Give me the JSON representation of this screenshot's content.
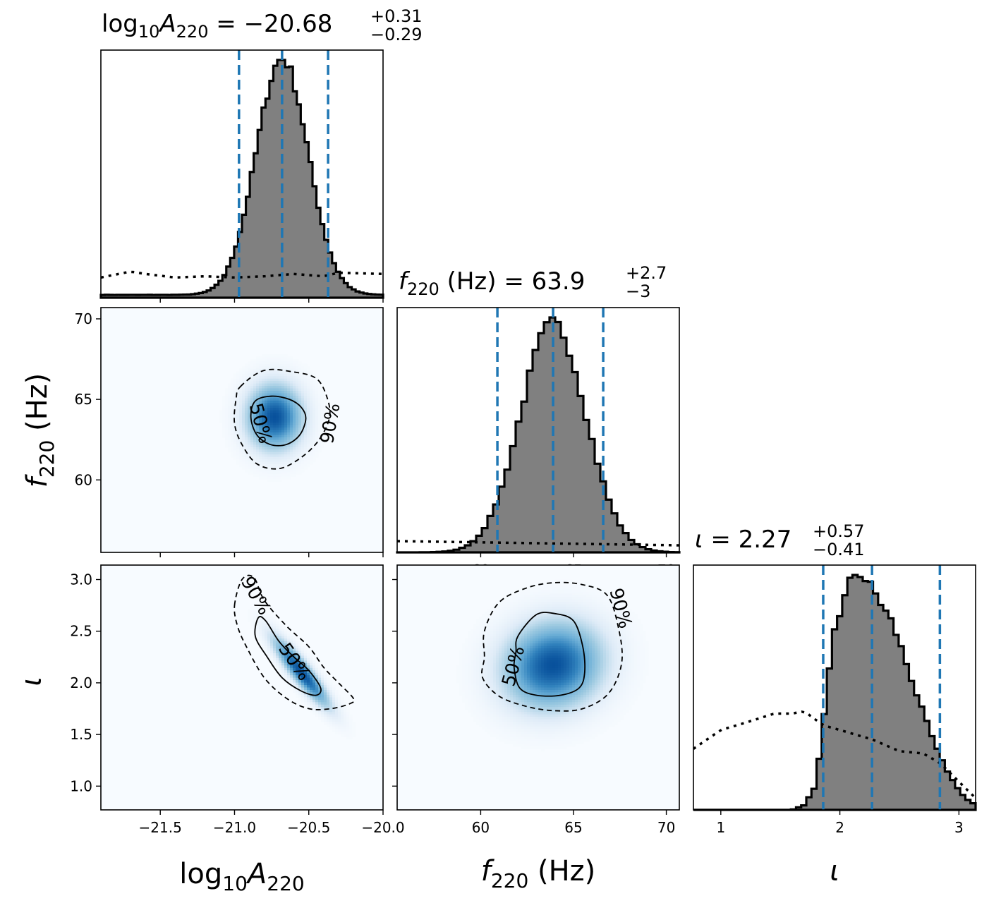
{
  "chart_data": {
    "type": "corner",
    "parameters": [
      "log10A220",
      "f220",
      "iota"
    ],
    "colors": {
      "posterior_fill": "#808080",
      "posterior_edge": "#000000",
      "quantile_lines": "#1f77b4",
      "density_map": "Blues",
      "contours": "#000000"
    },
    "legend": "none",
    "grid": false,
    "diagonal": [
      {
        "param": "log10A220",
        "title": "log₁₀A₂₂₀ = −20.68⁺⁰·³¹₋₀.₂₉",
        "title_main": "log",
        "title_sub1": "10",
        "title_var": "A",
        "title_sub2": "220",
        "title_eq": " = −20.68",
        "title_plus": "+0.31",
        "title_minus": "−0.29",
        "xlim": [
          -21.9,
          -20.0
        ],
        "quantiles": [
          -20.97,
          -20.68,
          -20.37
        ],
        "posterior_hist": {
          "mean": -20.68,
          "sd": 0.175,
          "floor": 0.012,
          "bins": 72
        },
        "prior_line": {
          "x": [
            -21.9,
            -21.7,
            -21.6,
            -21.4,
            -21.2,
            -21.0,
            -20.8,
            -20.6,
            -20.5,
            -20.4,
            -20.3,
            -20.0
          ],
          "y": [
            0.085,
            0.11,
            0.1,
            0.085,
            0.09,
            0.085,
            0.09,
            0.1,
            0.095,
            0.09,
            0.105,
            0.1
          ]
        }
      },
      {
        "param": "f220",
        "title_var": "f",
        "title_sub": "220",
        "title_rest": " (Hz) = 63.9",
        "title_plus": "+2.7",
        "title_minus": "−3",
        "xlim": [
          55.5,
          70.7
        ],
        "quantiles": [
          60.9,
          63.9,
          66.6
        ],
        "posterior_hist": {
          "mean": 63.9,
          "sd": 1.75,
          "floor": 0.0,
          "bins": 50
        },
        "prior_line": {
          "x": [
            55.5,
            70.7
          ],
          "y": [
            0.048,
            0.03
          ]
        }
      },
      {
        "param": "iota",
        "title_var": "ι",
        "title_rest": " = 2.27",
        "title_plus": "+0.57",
        "title_minus": "−0.41",
        "xlim": [
          0.77,
          3.14
        ],
        "quantiles": [
          1.86,
          2.27,
          2.84
        ],
        "posterior_hist": {
          "bins": 55
        },
        "posterior_shape": {
          "x": [
            0.77,
            1.6,
            1.7,
            1.8,
            1.86,
            1.95,
            2.1,
            2.15,
            2.2,
            2.3,
            2.45,
            2.6,
            2.7,
            2.84,
            2.95,
            3.05,
            3.14
          ],
          "y": [
            0.0,
            0.0,
            0.02,
            0.1,
            0.35,
            0.75,
            0.97,
            1.0,
            0.97,
            0.9,
            0.77,
            0.55,
            0.4,
            0.22,
            0.12,
            0.05,
            0.02
          ]
        },
        "prior_line": {
          "x": [
            0.77,
            1.0,
            1.2,
            1.45,
            1.6,
            1.7,
            1.86,
            2.0,
            2.27,
            2.5,
            2.7,
            2.84,
            3.0,
            3.14
          ],
          "y": [
            0.26,
            0.34,
            0.37,
            0.41,
            0.41,
            0.42,
            0.36,
            0.34,
            0.3,
            0.25,
            0.24,
            0.2,
            0.12,
            0.05
          ]
        }
      }
    ],
    "offdiagonal": [
      {
        "x_param": "log10A220",
        "y_param": "f220",
        "xlim": [
          -21.9,
          -20.0
        ],
        "ylim": [
          55.5,
          70.7
        ],
        "density_peak": {
          "x": -20.73,
          "y": 63.9,
          "sx": 0.12,
          "sy": 1.3,
          "rho": 0.0
        },
        "contours": [
          {
            "level": "50%",
            "style": "solid",
            "points": [
              [
                -20.86,
                64.9
              ],
              [
                -20.75,
                65.2
              ],
              [
                -20.63,
                65.0
              ],
              [
                -20.55,
                64.5
              ],
              [
                -20.52,
                63.8
              ],
              [
                -20.56,
                62.8
              ],
              [
                -20.65,
                62.2
              ],
              [
                -20.76,
                62.2
              ],
              [
                -20.85,
                62.8
              ],
              [
                -20.89,
                63.9
              ]
            ]
          },
          {
            "level": "90%",
            "style": "dashed",
            "points": [
              [
                -20.96,
                65.8
              ],
              [
                -20.8,
                66.8
              ],
              [
                -20.6,
                66.7
              ],
              [
                -20.45,
                66.3
              ],
              [
                -20.38,
                65.2
              ],
              [
                -20.36,
                63.9
              ],
              [
                -20.43,
                62.5
              ],
              [
                -20.55,
                61.4
              ],
              [
                -20.7,
                60.7
              ],
              [
                -20.85,
                61.0
              ],
              [
                -20.95,
                62.2
              ],
              [
                -21.0,
                63.5
              ],
              [
                -20.99,
                65.0
              ]
            ]
          }
        ],
        "contour_labels": [
          {
            "text": "50%",
            "x": -20.83,
            "y": 63.5,
            "rotate": 75
          },
          {
            "text": "90%",
            "x": -20.35,
            "y": 63.5,
            "rotate": -80
          }
        ]
      },
      {
        "x_param": "log10A220",
        "y_param": "iota",
        "xlim": [
          -21.9,
          -20.0
        ],
        "ylim": [
          0.77,
          3.14
        ],
        "density_peak": {
          "x": -20.55,
          "y": 2.1,
          "sx": 0.12,
          "sy": 0.21,
          "rho": -0.9
        },
        "contours": [
          {
            "level": "50%",
            "style": "solid",
            "points": [
              [
                -20.84,
                2.63
              ],
              [
                -20.79,
                2.6
              ],
              [
                -20.7,
                2.4
              ],
              [
                -20.6,
                2.25
              ],
              [
                -20.5,
                2.12
              ],
              [
                -20.42,
                1.95
              ],
              [
                -20.45,
                1.88
              ],
              [
                -20.55,
                1.92
              ],
              [
                -20.68,
                2.05
              ],
              [
                -20.78,
                2.25
              ],
              [
                -20.86,
                2.45
              ]
            ]
          },
          {
            "level": "90%",
            "style": "dashed",
            "points": [
              [
                -21.0,
                2.75
              ],
              [
                -20.95,
                3.0
              ],
              [
                -20.87,
                3.02
              ],
              [
                -20.8,
                2.8
              ],
              [
                -20.65,
                2.55
              ],
              [
                -20.5,
                2.35
              ],
              [
                -20.4,
                2.15
              ],
              [
                -20.3,
                2.0
              ],
              [
                -20.2,
                1.85
              ],
              [
                -20.22,
                1.8
              ],
              [
                -20.35,
                1.75
              ],
              [
                -20.5,
                1.75
              ],
              [
                -20.65,
                1.85
              ],
              [
                -20.8,
                2.05
              ],
              [
                -20.92,
                2.35
              ],
              [
                -20.98,
                2.55
              ]
            ]
          }
        ],
        "contour_labels": [
          {
            "text": "90%",
            "x": -20.86,
            "y": 2.84,
            "rotate": 60
          },
          {
            "text": "50%",
            "x": -20.6,
            "y": 2.2,
            "rotate": 55
          }
        ]
      },
      {
        "x_param": "f220",
        "y_param": "iota",
        "xlim": [
          55.5,
          70.7
        ],
        "ylim": [
          0.77,
          3.14
        ],
        "density_peak": {
          "x": 63.9,
          "y": 2.17,
          "sx": 1.7,
          "sy": 0.27,
          "rho": 0.1
        },
        "contours": [
          {
            "level": "50%",
            "style": "solid",
            "points": [
              [
                62.0,
                2.45
              ],
              [
                63.0,
                2.66
              ],
              [
                64.0,
                2.67
              ],
              [
                65.0,
                2.6
              ],
              [
                65.5,
                2.35
              ],
              [
                65.6,
                2.1
              ],
              [
                65.3,
                1.95
              ],
              [
                64.3,
                1.88
              ],
              [
                63.0,
                1.88
              ],
              [
                62.1,
                1.95
              ],
              [
                61.8,
                2.15
              ],
              [
                61.9,
                2.3
              ]
            ]
          },
          {
            "level": "90%",
            "style": "dashed",
            "points": [
              [
                60.2,
                2.5
              ],
              [
                61.0,
                2.78
              ],
              [
                62.5,
                2.92
              ],
              [
                64.0,
                2.97
              ],
              [
                65.5,
                2.95
              ],
              [
                66.8,
                2.85
              ],
              [
                67.4,
                2.55
              ],
              [
                67.6,
                2.2
              ],
              [
                66.9,
                1.9
              ],
              [
                65.5,
                1.75
              ],
              [
                64.0,
                1.73
              ],
              [
                62.5,
                1.77
              ],
              [
                61.0,
                1.87
              ],
              [
                60.1,
                2.05
              ],
              [
                60.2,
                2.25
              ]
            ]
          }
        ],
        "contour_labels": [
          {
            "text": "50%",
            "x": 61.8,
            "y": 2.16,
            "rotate": -75
          },
          {
            "text": "90%",
            "x": 67.5,
            "y": 2.72,
            "rotate": 75
          }
        ]
      }
    ],
    "axes": {
      "log10A220": {
        "ticks": [
          -21.5,
          -21.0,
          -20.5,
          -20.0
        ],
        "ticklabels": [
          "−21.5",
          "−21.0",
          "−20.5",
          "−20.0"
        ]
      },
      "f220": {
        "ticks": [
          60,
          65,
          70
        ],
        "ticklabels": [
          "60",
          "65",
          "70"
        ]
      },
      "iota_x": {
        "ticks": [
          1,
          2,
          3
        ],
        "ticklabels": [
          "1",
          "2",
          "3"
        ]
      },
      "iota_y": {
        "ticks": [
          1.0,
          1.5,
          2.0,
          2.5,
          3.0
        ],
        "ticklabels": [
          "1.0",
          "1.5",
          "2.0",
          "2.5",
          "3.0"
        ]
      }
    },
    "axis_labels": {
      "x1": {
        "pre": "log",
        "sub1": "10",
        "var": "A",
        "sub2": "220"
      },
      "x2": {
        "var": "f",
        "sub": "220",
        "post": " (Hz)"
      },
      "x3": {
        "var": "ι"
      },
      "y1": {
        "var": "f",
        "sub": "220",
        "post": " (Hz)"
      },
      "y2": {
        "var": "ι"
      }
    }
  }
}
